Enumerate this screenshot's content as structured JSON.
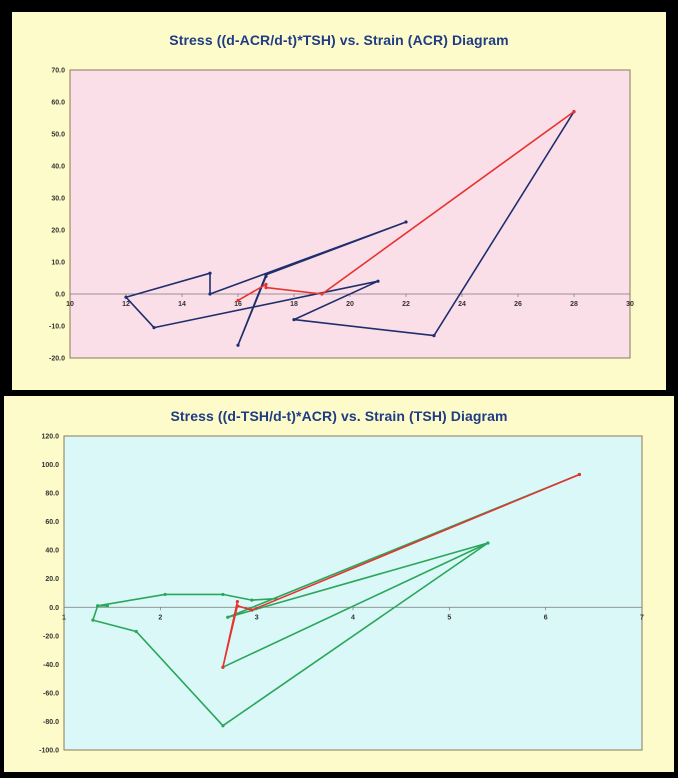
{
  "chart_data": [
    {
      "type": "scatter",
      "title": "Stress ((d-ACR/d-t)*TSH) vs. Strain (ACR) Diagram",
      "xlim": [
        10,
        30
      ],
      "ylim": [
        -20,
        70
      ],
      "x_ticks": [
        "10",
        "12",
        "14",
        "16",
        "18",
        "20",
        "22",
        "24",
        "26",
        "28",
        "30"
      ],
      "y_ticks": [
        "70.0",
        "60.0",
        "50.0",
        "40.0",
        "30.0",
        "20.0",
        "10.0",
        "0.0",
        "-10.0",
        "-20.0"
      ],
      "plot_background": "#fbdfe8",
      "series": [
        {
          "color": "#1f2f6e",
          "x": [
            28,
            23,
            18,
            21,
            13,
            12,
            15,
            15,
            22,
            17,
            16,
            17
          ],
          "y": [
            57,
            -13,
            -8,
            4,
            -10.5,
            -1,
            6.5,
            0,
            22.5,
            6,
            -16,
            5.5
          ]
        },
        {
          "color": "#e8322f",
          "x": [
            16,
            17,
            17,
            19,
            28
          ],
          "y": [
            -2,
            3,
            2,
            0,
            57
          ]
        }
      ]
    },
    {
      "type": "scatter",
      "title": "Stress ((d-TSH/d-t)*ACR) vs. Strain (TSH) Diagram",
      "xlim": [
        1,
        7
      ],
      "ylim": [
        -100,
        120
      ],
      "x_ticks": [
        "1",
        "2",
        "3",
        "4",
        "5",
        "6",
        "7"
      ],
      "y_ticks": [
        "120.0",
        "100.0",
        "80.0",
        "60.0",
        "40.0",
        "20.0",
        "0.0",
        "-20.0",
        "-40.0",
        "-60.0",
        "-80.0",
        "-100.0"
      ],
      "plot_background": "#d9f8f7",
      "series": [
        {
          "color": "#2aa65a",
          "x": [
            6.35,
            2.7,
            5.4,
            2.65,
            5.4,
            2.65,
            1.75,
            1.3,
            1.35,
            1.45,
            1.35,
            2.05,
            2.65,
            2.95,
            3.2
          ],
          "y": [
            93,
            -7,
            45,
            -42,
            45,
            -83,
            -17,
            -9,
            1,
            1,
            1,
            9,
            9,
            5,
            6
          ]
        },
        {
          "color": "#e8322f",
          "x": [
            2.8,
            2.65,
            2.8,
            2.95,
            6.35
          ],
          "y": [
            4,
            -42,
            1,
            -2,
            93
          ]
        }
      ]
    }
  ]
}
